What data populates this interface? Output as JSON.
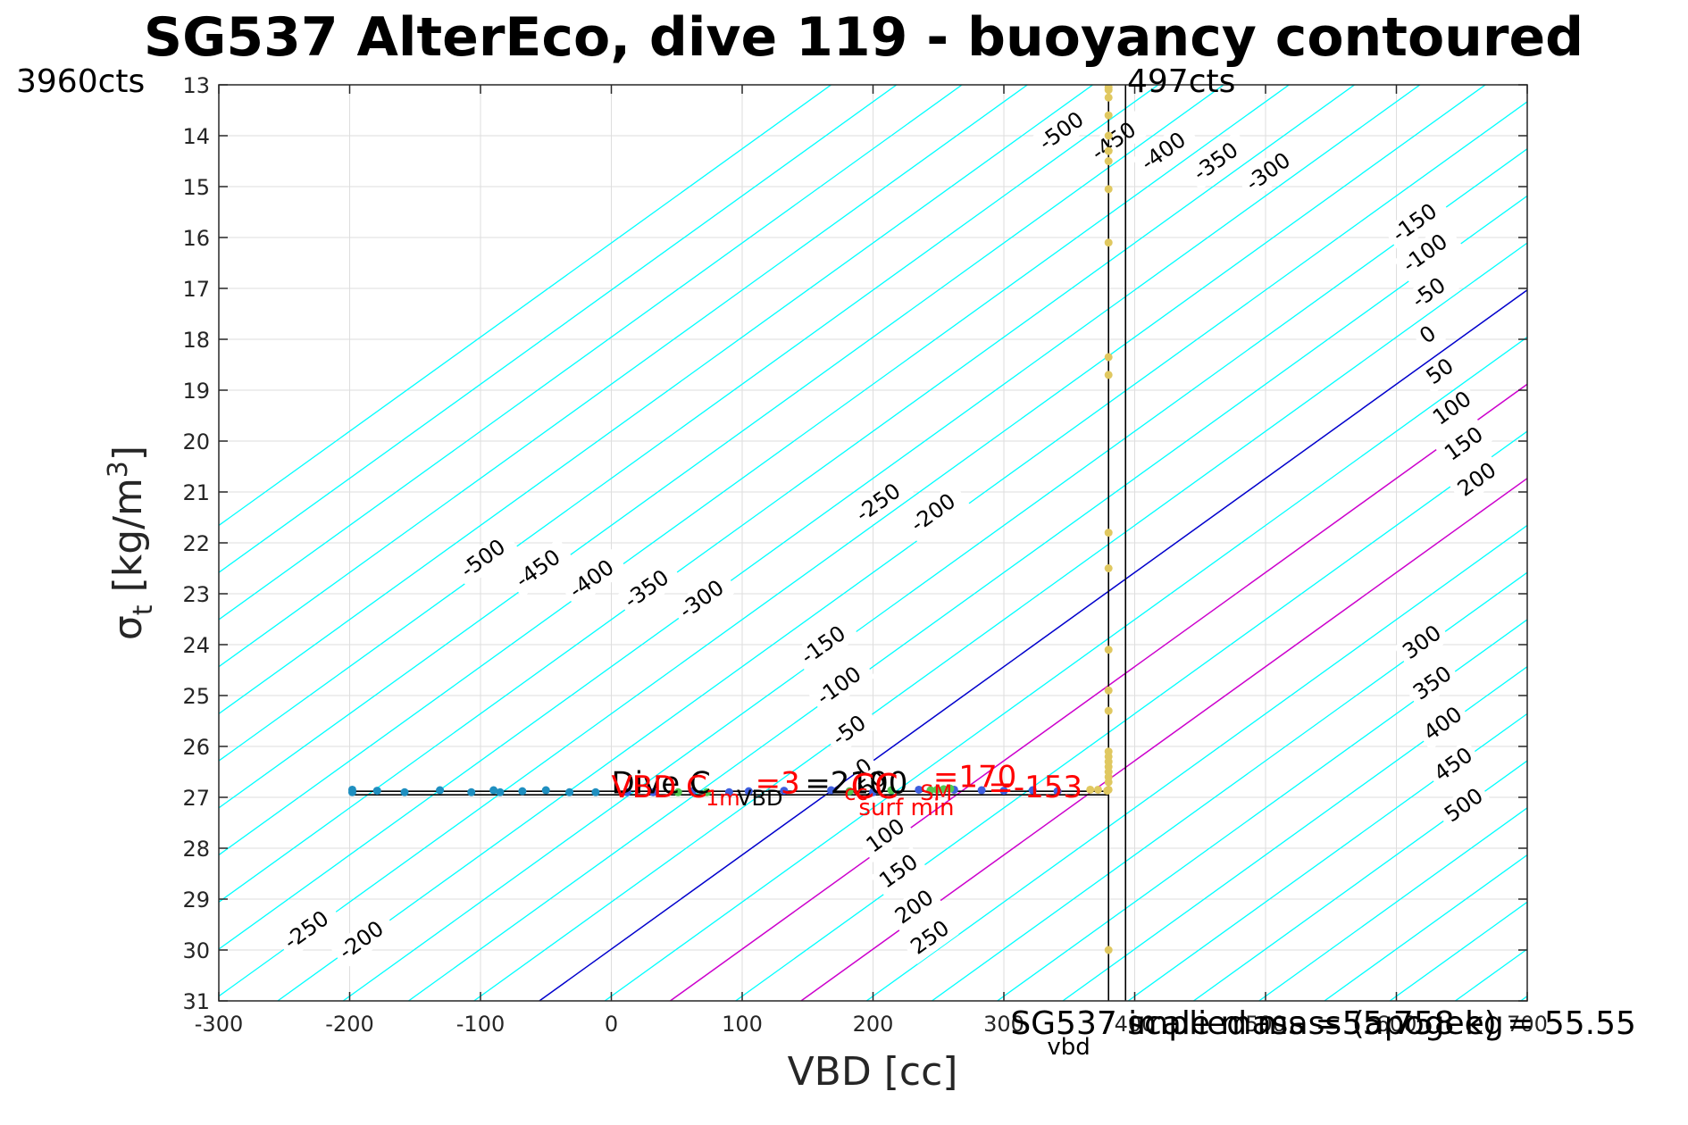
{
  "colors": {
    "contour_negative": "#00ffff",
    "contour_zero": "#0000cc",
    "contour_positive_near": "#cc00cc",
    "contour_positive": "#00ffff",
    "grid": "#dedede",
    "axis": "#262626",
    "annotation_red": "#ff0000"
  },
  "chart_data": {
    "type": "scatter",
    "title": "SG537 AlterEco, dive 119 - buoyancy contoured",
    "xlabel": "VBD [cc]",
    "ylabel": "σ_t [kg/m^3]",
    "xlim": [
      -300,
      700
    ],
    "ylim": [
      31,
      13
    ],
    "y_reversed": true,
    "grid": true,
    "x_ticks": [
      -300,
      -200,
      -100,
      0,
      100,
      200,
      300,
      400,
      500,
      600,
      700
    ],
    "x_tick_labels": [
      "-300",
      "-200",
      "-100",
      "0",
      "100",
      "200",
      "300",
      "400",
      "500",
      "600",
      "700"
    ],
    "y_ticks": [
      13,
      14,
      15,
      16,
      17,
      18,
      19,
      20,
      21,
      22,
      23,
      24,
      25,
      26,
      27,
      28,
      29,
      30,
      31
    ],
    "y_tick_labels": [
      "13",
      "14",
      "15",
      "16",
      "17",
      "18",
      "19",
      "20",
      "21",
      "22",
      "23",
      "24",
      "25",
      "26",
      "27",
      "28",
      "29",
      "30",
      "31"
    ],
    "corner_labels": {
      "top_left": "3960cts",
      "top_right": "497cts"
    },
    "contours": {
      "slope_sigma_per_cc": 0.0185,
      "zero_line": {
        "vbd_at_sigma31": -55,
        "vbd_at_sigma17": 700
      },
      "levels": [
        -750,
        -700,
        -650,
        -600,
        -550,
        -500,
        -450,
        -400,
        -350,
        -300,
        -250,
        -200,
        -150,
        -100,
        -50,
        0,
        50,
        100,
        150,
        200,
        250,
        300,
        350,
        400,
        450,
        500,
        550,
        600,
        650,
        700,
        750,
        800,
        850,
        900,
        950,
        1000,
        1050,
        1100
      ],
      "highlight_levels": [
        0,
        100,
        200
      ],
      "labels": [
        {
          "text": "-500",
          "vbd": -110,
          "sigma": 22.7
        },
        {
          "text": "-450",
          "vbd": -68,
          "sigma": 22.9
        },
        {
          "text": "-400",
          "vbd": -27,
          "sigma": 23.1
        },
        {
          "text": "-350",
          "vbd": 15,
          "sigma": 23.3
        },
        {
          "text": "-300",
          "vbd": 57,
          "sigma": 23.5
        },
        {
          "text": "-250",
          "vbd": 192,
          "sigma": 21.6
        },
        {
          "text": "-200",
          "vbd": 234,
          "sigma": 21.8
        },
        {
          "text": "-150",
          "vbd": 150,
          "sigma": 24.4
        },
        {
          "text": "-100",
          "vbd": 162,
          "sigma": 25.2
        },
        {
          "text": "-50",
          "vbd": 174,
          "sigma": 26.0
        },
        {
          "text": "0",
          "vbd": 192,
          "sigma": 26.6
        },
        {
          "text": "50",
          "vbd": 194,
          "sigma": 27.0
        },
        {
          "text": "100",
          "vbd": 200,
          "sigma": 28.1
        },
        {
          "text": "150",
          "vbd": 210,
          "sigma": 28.8
        },
        {
          "text": "200",
          "vbd": 222,
          "sigma": 29.5
        },
        {
          "text": "250",
          "vbd": 234,
          "sigma": 30.1
        },
        {
          "text": "-250",
          "vbd": -245,
          "sigma": 30.0
        },
        {
          "text": "-200",
          "vbd": -203,
          "sigma": 30.2
        },
        {
          "text": "-500",
          "vbd": 332,
          "sigma": 14.3
        },
        {
          "text": "-450",
          "vbd": 372,
          "sigma": 14.5
        },
        {
          "text": "-400",
          "vbd": 410,
          "sigma": 14.7
        },
        {
          "text": "-350",
          "vbd": 450,
          "sigma": 14.9
        },
        {
          "text": "-300",
          "vbd": 490,
          "sigma": 15.1
        },
        {
          "text": "-150",
          "vbd": 602,
          "sigma": 16.1
        },
        {
          "text": "-100",
          "vbd": 610,
          "sigma": 16.7
        },
        {
          "text": "-50",
          "vbd": 617,
          "sigma": 17.4
        },
        {
          "text": "0",
          "vbd": 623,
          "sigma": 18.1
        },
        {
          "text": "50",
          "vbd": 628,
          "sigma": 18.9
        },
        {
          "text": "100",
          "vbd": 633,
          "sigma": 19.7
        },
        {
          "text": "150",
          "vbd": 642,
          "sigma": 20.4
        },
        {
          "text": "200",
          "vbd": 652,
          "sigma": 21.1
        },
        {
          "text": "300",
          "vbd": 610,
          "sigma": 24.3
        },
        {
          "text": "350",
          "vbd": 618,
          "sigma": 25.1
        },
        {
          "text": "400",
          "vbd": 626,
          "sigma": 25.9
        },
        {
          "text": "450",
          "vbd": 634,
          "sigma": 26.7
        },
        {
          "text": "500",
          "vbd": 642,
          "sigma": 27.5
        }
      ]
    },
    "vertical_lines": [
      {
        "vbd": 380,
        "from_sigma": 13,
        "to_sigma": 31
      },
      {
        "vbd": 393,
        "from_sigma": 13,
        "to_sigma": 31
      }
    ],
    "horizontal_lines": [
      {
        "sigma": 26.88,
        "from_vbd": -198,
        "to_vbd": 380
      },
      {
        "sigma": 26.95,
        "from_vbd": -198,
        "to_vbd": 380
      }
    ],
    "series": [
      {
        "color": "#1f8fc0",
        "x": [
          -198,
          -198,
          -179,
          -158,
          -131,
          -107,
          -90,
          -85,
          -68,
          -50,
          -32,
          -12
        ],
        "y": [
          26.85,
          26.9,
          26.87,
          26.9,
          26.86,
          26.9,
          26.86,
          26.9,
          26.88,
          26.86,
          26.9,
          26.9
        ]
      },
      {
        "color": "#3f5fdf",
        "x": [
          12,
          32,
          62,
          90,
          105,
          132,
          168,
          200,
          235,
          262,
          283,
          300,
          322,
          341
        ],
        "y": [
          26.9,
          26.9,
          26.88,
          26.9,
          26.88,
          26.87,
          26.86,
          26.9,
          26.85,
          26.85,
          26.86,
          26.87,
          26.86,
          26.88
        ]
      },
      {
        "color": "#50c850",
        "x": [
          51,
          73,
          182,
          214,
          244,
          249,
          254,
          259
        ],
        "y": [
          26.9,
          26.9,
          26.88,
          26.86,
          26.86,
          26.85,
          26.84,
          26.83
        ]
      },
      {
        "color": "#e0c860",
        "x": [
          366,
          372,
          379,
          380,
          380,
          380,
          380,
          380,
          380,
          380,
          380,
          380,
          380,
          380,
          380,
          380,
          380,
          380,
          380,
          380,
          380,
          380,
          380,
          380,
          380,
          380,
          380,
          380
        ],
        "y": [
          26.85,
          26.85,
          26.87,
          26.7,
          26.5,
          26.3,
          26.2,
          25.3,
          24.9,
          24.1,
          22.5,
          21.8,
          18.7,
          18.35,
          16.1,
          15.05,
          14.5,
          14.3,
          14.0,
          13.6,
          13.25,
          13.1,
          26.6,
          26.85,
          30.0,
          26.4,
          26.1,
          13.05
        ]
      }
    ],
    "annotations": [
      {
        "text": "Dive C",
        "vbd": 0,
        "sigma": 26.92,
        "color": "#000000",
        "size": 34
      },
      {
        "text": "VBD C",
        "vbd": 0,
        "sigma": 27.0,
        "color": "#ff0000",
        "size": 34
      },
      {
        "text": "=3",
        "vbd": 110,
        "sigma": 26.92,
        "color": "#ff0000",
        "size": 34
      },
      {
        "text": "=2100",
        "vbd": 148,
        "sigma": 26.92,
        "color": "#000000",
        "size": 34
      },
      {
        "text": "CC",
        "vbd": 183,
        "sigma": 27.02,
        "color": "#ff0000",
        "size": 38
      },
      {
        "text": "=170",
        "vbd": 246,
        "sigma": 26.8,
        "color": "#ff0000",
        "size": 34
      },
      {
        "text": "=-153",
        "vbd": 288,
        "sigma": 27.0,
        "color": "#ff0000",
        "size": 34
      },
      {
        "text": "1m",
        "vbd": 72,
        "sigma": 27.16,
        "color": "#ff0000",
        "size": 24
      },
      {
        "text": "VBD",
        "vbd": 96,
        "sigma": 27.16,
        "color": "#000000",
        "size": 24
      },
      {
        "text": "cc",
        "vbd": 178,
        "sigma": 27.05,
        "color": "#ff0000",
        "size": 24
      },
      {
        "text": "SM",
        "vbd": 236,
        "sigma": 27.05,
        "color": "#ff0000",
        "size": 24
      },
      {
        "text": "surf min",
        "vbd": 189,
        "sigma": 27.35,
        "color": "#ff0000",
        "size": 26
      },
      {
        "text": "SG537 scale mass =55.758 kg",
        "vbd": 305,
        "sigma": 31.65,
        "color": "#000000",
        "size": 36
      },
      {
        "text": "implied mass (apogee) = 55.55",
        "vbd": 395,
        "sigma": 31.65,
        "color": "#000000",
        "size": 36
      },
      {
        "text": "vbd",
        "vbd": 333,
        "sigma": 32.05,
        "color": "#000000",
        "size": 26
      }
    ]
  }
}
